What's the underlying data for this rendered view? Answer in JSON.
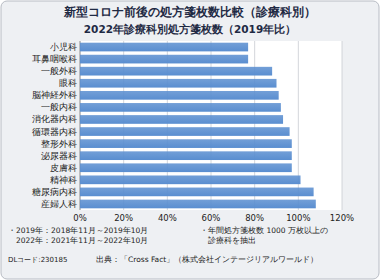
{
  "chart_data": {
    "type": "bar",
    "orientation": "horizontal",
    "title": "新型コロナ前後の処方箋枚数比較（診療科別）",
    "subtitle": "2022年診療科別処方箋枚数（2019年比）",
    "categories": [
      "小児科",
      "耳鼻咽喉科",
      "一般外科",
      "眼科",
      "脳神経外科",
      "一般内科",
      "消化器内科",
      "循環器内科",
      "整形外科",
      "泌尿器科",
      "皮膚科",
      "精神科",
      "糖尿病内科",
      "産婦人科"
    ],
    "values": [
      77,
      77,
      88,
      90,
      91,
      92,
      93,
      96,
      97,
      97,
      97,
      101,
      107,
      108
    ],
    "color": "#5a8ed0",
    "xlim": [
      0,
      120
    ],
    "xticks": [
      {
        "value": 0,
        "label": "0%"
      },
      {
        "value": 20,
        "label": "20%"
      },
      {
        "value": 40,
        "label": "40%"
      },
      {
        "value": 60,
        "label": "60%"
      },
      {
        "value": 80,
        "label": "80%"
      },
      {
        "value": 100,
        "label": "100%"
      },
      {
        "value": 120,
        "label": "120%"
      }
    ],
    "grid": true,
    "notes": [
      "・2019年：2018年11月～2019年10月",
      "　2022年：2021年11月～2022年10月",
      "・年間処方箋枚数 1000 万枚以上の",
      "　診療科を抽出"
    ],
    "code": "DLコード:230185",
    "source": "出典：「Cross Fact」（株式会社インテージリアルワールド）"
  }
}
